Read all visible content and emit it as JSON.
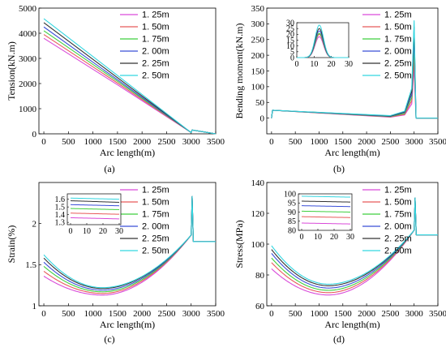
{
  "chart_data": [
    {
      "id": "a",
      "type": "line",
      "panel_label": "(a)",
      "xlabel": "Arc length(m)",
      "ylabel": "Tension(kN.m)",
      "xlim": [
        -100,
        3500
      ],
      "ylim": [
        0,
        5000
      ],
      "xticks": [
        0,
        500,
        1000,
        1500,
        2000,
        2500,
        3000,
        3500
      ],
      "yticks": [
        0,
        1000,
        2000,
        3000,
        4000,
        5000
      ],
      "legend_position": "top-right",
      "series": [
        {
          "name": "1. 25m",
          "color": "#d94ad9",
          "x": [
            0,
            1500,
            3000,
            3020,
            3500
          ],
          "y": [
            3800,
            1950,
            50,
            150,
            0
          ]
        },
        {
          "name": "1. 50m",
          "color": "#e85a5a",
          "x": [
            0,
            1500,
            3000,
            3020,
            3500
          ],
          "y": [
            3950,
            2020,
            50,
            150,
            0
          ]
        },
        {
          "name": "1. 75m",
          "color": "#3fcf3f",
          "x": [
            0,
            1500,
            3000,
            3020,
            3500
          ],
          "y": [
            4100,
            2090,
            50,
            150,
            0
          ]
        },
        {
          "name": "2. 00m",
          "color": "#3a4fd8",
          "x": [
            0,
            1500,
            3000,
            3020,
            3500
          ],
          "y": [
            4250,
            2150,
            50,
            150,
            0
          ]
        },
        {
          "name": "2. 25m",
          "color": "#333333",
          "x": [
            0,
            1500,
            3000,
            3020,
            3500
          ],
          "y": [
            4420,
            2230,
            50,
            150,
            0
          ]
        },
        {
          "name": "2. 50m",
          "color": "#33d6e0",
          "x": [
            0,
            1500,
            3000,
            3020,
            3500
          ],
          "y": [
            4580,
            2320,
            50,
            150,
            0
          ]
        }
      ]
    },
    {
      "id": "b",
      "type": "line",
      "panel_label": "(b)",
      "xlabel": "Arc length(m)",
      "ylabel": "Bending moment(kN.m)",
      "xlim": [
        -100,
        3500
      ],
      "ylim": [
        -50,
        350
      ],
      "xticks": [
        0,
        500,
        1000,
        1500,
        2000,
        2500,
        3000,
        3500
      ],
      "yticks": [
        0,
        50,
        100,
        150,
        200,
        250,
        300,
        350
      ],
      "legend_position": "top-right",
      "series": [
        {
          "name": "1. 25m",
          "color": "#d94ad9",
          "x": [
            0,
            20,
            2500,
            2800,
            2950,
            3000,
            3040,
            3100,
            3500
          ],
          "y": [
            0,
            25,
            3,
            10,
            45,
            160,
            0,
            0,
            0
          ]
        },
        {
          "name": "1. 50m",
          "color": "#e85a5a",
          "x": [
            0,
            20,
            2500,
            2800,
            2950,
            3000,
            3040,
            3100,
            3500
          ],
          "y": [
            0,
            25,
            4,
            12,
            55,
            190,
            0,
            0,
            0
          ]
        },
        {
          "name": "1. 75m",
          "color": "#3fcf3f",
          "x": [
            0,
            20,
            2500,
            2800,
            2950,
            3000,
            3040,
            3100,
            3500
          ],
          "y": [
            0,
            25,
            5,
            15,
            65,
            230,
            0,
            0,
            0
          ]
        },
        {
          "name": "2. 00m",
          "color": "#3a4fd8",
          "x": [
            0,
            20,
            2500,
            2800,
            2950,
            3000,
            3040,
            3100,
            3500
          ],
          "y": [
            0,
            25,
            6,
            18,
            75,
            260,
            0,
            0,
            0
          ]
        },
        {
          "name": "2. 25m",
          "color": "#333333",
          "x": [
            0,
            20,
            2500,
            2800,
            2950,
            3000,
            3040,
            3100,
            3500
          ],
          "y": [
            0,
            25,
            7,
            20,
            85,
            290,
            0,
            0,
            0
          ]
        },
        {
          "name": "2. 50m",
          "color": "#33d6e0",
          "x": [
            0,
            20,
            2500,
            2800,
            2950,
            3000,
            3040,
            3100,
            3500
          ],
          "y": [
            0,
            25,
            8,
            22,
            95,
            310,
            0,
            0,
            0
          ]
        }
      ],
      "inset": {
        "xlim": [
          0,
          30
        ],
        "ylim": [
          0,
          30
        ],
        "xticks": [
          0,
          10,
          20,
          30
        ],
        "yticks": [
          0,
          5,
          10,
          15,
          20,
          25,
          30
        ],
        "series_peaks": [
          {
            "name": "1. 25m",
            "peak": 18
          },
          {
            "name": "1. 50m",
            "peak": 20
          },
          {
            "name": "1. 75m",
            "peak": 21
          },
          {
            "name": "2. 00m",
            "peak": 23
          },
          {
            "name": "2. 25m",
            "peak": 25
          },
          {
            "name": "2. 50m",
            "peak": 28
          }
        ]
      }
    },
    {
      "id": "c",
      "type": "line",
      "panel_label": "(c)",
      "xlabel": "Arc length(m)",
      "ylabel": "Strain(%)",
      "xlim": [
        -100,
        3500
      ],
      "ylim": [
        1,
        2.5
      ],
      "xticks": [
        0,
        500,
        1000,
        1500,
        2000,
        2500,
        3000,
        3500
      ],
      "yticks": [
        1,
        1.5,
        2
      ],
      "legend_position": "top-right",
      "series": [
        {
          "name": "1. 25m",
          "color": "#d94ad9",
          "start": 1.36,
          "min": 1.13
        },
        {
          "name": "1. 50m",
          "color": "#e85a5a",
          "start": 1.42,
          "min": 1.15
        },
        {
          "name": "1. 75m",
          "color": "#3fcf3f",
          "start": 1.48,
          "min": 1.17
        },
        {
          "name": "2. 00m",
          "color": "#3a4fd8",
          "start": 1.53,
          "min": 1.19
        },
        {
          "name": "2. 25m",
          "color": "#333333",
          "start": 1.58,
          "min": 1.21
        },
        {
          "name": "2. 50m",
          "color": "#33d6e0",
          "start": 1.62,
          "min": 1.22
        }
      ],
      "shape": {
        "x_min": 1200,
        "x_end": 3000,
        "y_end": 1.86,
        "x_spike": 3020,
        "y_spike": 2.33,
        "y_plateau": 1.78,
        "x_plateau_end": 3500
      },
      "inset": {
        "xlim": [
          -2,
          31
        ],
        "ylim": [
          1.27,
          1.67
        ],
        "xticks": [
          0,
          10,
          20,
          30
        ],
        "yticks": [
          1.3,
          1.4,
          1.5,
          1.6
        ],
        "series_levels": [
          {
            "name": "1. 25m",
            "y0": 1.36,
            "y30": 1.345
          },
          {
            "name": "1. 50m",
            "y0": 1.42,
            "y30": 1.405
          },
          {
            "name": "1. 75m",
            "y0": 1.48,
            "y30": 1.465
          },
          {
            "name": "2. 00m",
            "y0": 1.53,
            "y30": 1.515
          },
          {
            "name": "2. 25m",
            "y0": 1.58,
            "y30": 1.56
          },
          {
            "name": "2. 50m",
            "y0": 1.615,
            "y30": 1.6
          }
        ]
      }
    },
    {
      "id": "d",
      "type": "line",
      "panel_label": "(d)",
      "xlabel": "Arc length(m)",
      "ylabel": "Stress(MPa)",
      "xlim": [
        -100,
        3500
      ],
      "ylim": [
        60,
        140
      ],
      "xticks": [
        0,
        500,
        1000,
        1500,
        2000,
        2500,
        3000,
        3500
      ],
      "yticks": [
        60,
        80,
        100,
        120,
        140
      ],
      "legend_position": "top-right",
      "series": [
        {
          "name": "1. 25m",
          "color": "#d94ad9",
          "start": 84,
          "min": 67
        },
        {
          "name": "1. 50m",
          "color": "#e85a5a",
          "start": 88,
          "min": 68.5
        },
        {
          "name": "1. 75m",
          "color": "#3fcf3f",
          "start": 91,
          "min": 70
        },
        {
          "name": "2. 00m",
          "color": "#3a4fd8",
          "start": 94,
          "min": 71.5
        },
        {
          "name": "2. 25m",
          "color": "#333333",
          "start": 96.5,
          "min": 73
        },
        {
          "name": "2. 50m",
          "color": "#33d6e0",
          "start": 99,
          "min": 74
        }
      ],
      "shape": {
        "x_min": 1200,
        "x_end": 3000,
        "y_end": 109,
        "x_spike": 3020,
        "y_spike": 130,
        "y_plateau": 106,
        "x_plateau_end": 3500
      },
      "inset": {
        "xlim": [
          -2,
          31
        ],
        "ylim": [
          80,
          100
        ],
        "xticks": [
          0,
          10,
          20,
          30
        ],
        "yticks": [
          80,
          85,
          90,
          95,
          100
        ],
        "series_levels": [
          {
            "name": "1. 25m",
            "y0": 84,
            "y30": 83.5
          },
          {
            "name": "1. 50m",
            "y0": 87.5,
            "y30": 87
          },
          {
            "name": "1. 75m",
            "y0": 90.5,
            "y30": 90
          },
          {
            "name": "2. 00m",
            "y0": 93.5,
            "y30": 93
          },
          {
            "name": "2. 25m",
            "y0": 96,
            "y30": 95.5
          },
          {
            "name": "2. 50m",
            "y0": 98.7,
            "y30": 98.2
          }
        ]
      }
    }
  ]
}
